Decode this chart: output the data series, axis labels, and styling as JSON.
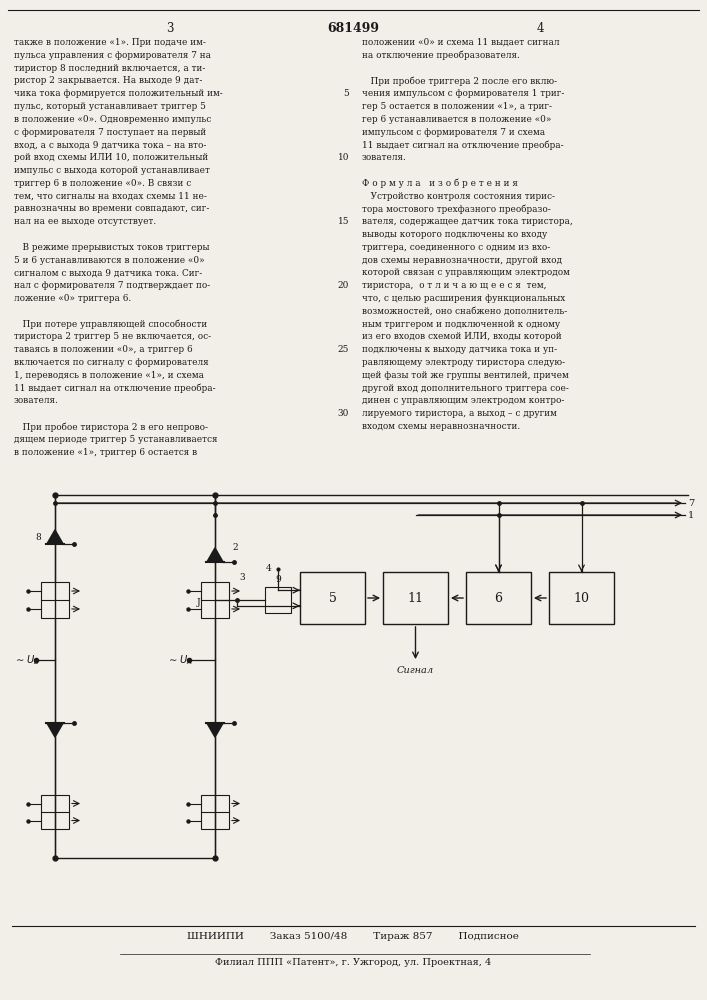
{
  "bg_color": "#f2efe8",
  "text_color": "#1a1a1a",
  "patent_number": "681499",
  "page_left": "3",
  "page_right": "4",
  "col1_lines": [
    "также в положение «1». При подаче им-",
    "пульса управления с формирователя 7 на",
    "тиристор 8 последний включается, а ти-",
    "ристор 2 закрывается. На выходе 9 дат-",
    "чика тока формируется положительный им-",
    "пульс, который устанавливает триггер 5",
    "в положение «0». Одновременно импульс",
    "с формирователя 7 поступает на первый",
    "вход, а с выхода 9 датчика тока – на вто-",
    "рой вход схемы ИЛИ 10, положительный",
    "импульс с выхода которой устанавливает",
    "триггер 6 в положение «0». В связи с",
    "тем, что сигналы на входах схемы 11 не-",
    "равнозначны во времени совпадают, сиг-",
    "нал на ее выходе отсутствует.",
    "",
    "   В режиме прерывистых токов триггеры",
    "5 и 6 устанавливаются в положение «0»",
    "сигналом с выхода 9 датчика тока. Сиг-",
    "нал с формирователя 7 подтверждает по-",
    "ложение «0» триггера 6.",
    "",
    "   При потере управляющей способности",
    "тиристора 2 триггер 5 не включается, ос-",
    "таваясь в положении «0», а триггер 6",
    "включается по сигналу с формирователя",
    "1, переводясь в положение «1», и схема",
    "11 выдает сигнал на отключение преобра-",
    "зователя.",
    "",
    "   При пробое тиристора 2 в его непрово-",
    "дящем периоде триггер 5 устанавливается",
    "в положение «1», триггер 6 остается в"
  ],
  "col1_line_numbers": {
    "4": "5",
    "9": "10",
    "14": "15",
    "19": "20",
    "24": "25",
    "29": "30"
  },
  "col2_lines": [
    "положении «0» и схема 11 выдает сигнал",
    "на отключение преобразователя.",
    "",
    "   При пробое триггера 2 после его вклю-",
    "чения импульсом с формирователя 1 триг-",
    "гер 5 остается в положении «1», а триг-",
    "гер 6 устанавливается в положение «0»",
    "импульсом с формирователя 7 и схема",
    "11 выдает сигнал на отключение преобра-",
    "зователя.",
    "",
    "Ф о р м у л а   и з о б р е т е н и я",
    "   Устройство контроля состояния тирис-",
    "тора мостового трехфазного преобразо-",
    "вателя, содержащее датчик тока тиристора,",
    "выводы которого подключены ко входу",
    "триггера, соединенного с одним из вхо-",
    "дов схемы неравнозначности, другой вход",
    "которой связан с управляющим электродом",
    "тиристора,  о т л и ч а ю щ е е с я  тем,",
    "что, с целью расширения функциональных",
    "возможностей, оно снабжено дополнитель-",
    "ным триггером и подключенной к одному",
    "из его входов схемой ИЛИ, входы которой",
    "подключены к выходу датчика тока и уп-",
    "равляющему электроду тиристора следую-",
    "щей фазы той же группы вентилей, причем",
    "другой вход дополнительного триггера сое-",
    "динен с управляющим электродом контро-",
    "лируемого тиристора, а выход – с другим",
    "входом схемы неравнозначности."
  ],
  "footer_main": "ШНИИПИ        Заказ 5100/48        Тираж 857        Подписное",
  "footer_sub": "Филиал ППП «Патент», г. Ужгород, ул. Проектная, 4"
}
